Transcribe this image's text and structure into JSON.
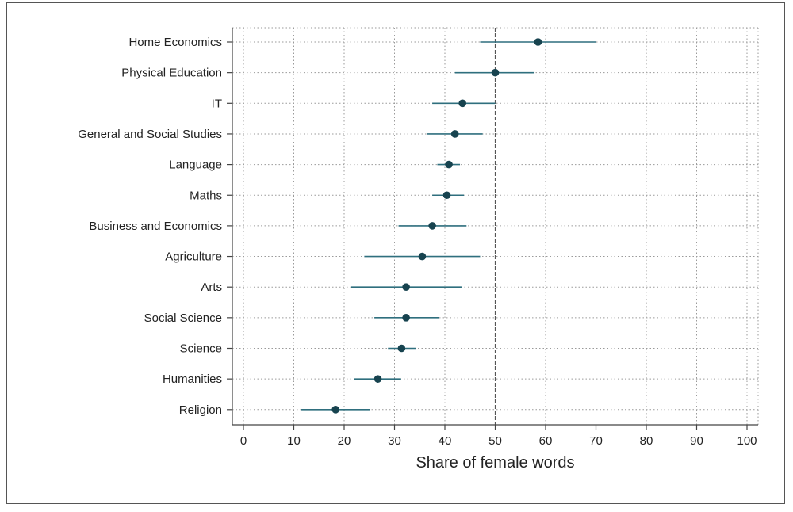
{
  "chart_data": {
    "type": "scatter",
    "title": "",
    "xlabel": "Share of female words",
    "ylabel": "",
    "xlim": [
      0,
      100
    ],
    "xticks": [
      "0",
      "10",
      "20",
      "30",
      "40",
      "50",
      "60",
      "70",
      "80",
      "90",
      "100"
    ],
    "reference_line": 50,
    "grid": true,
    "colors": {
      "marker": "#17434f",
      "ci": "#2f6f7e",
      "grid": "#9a9a9a",
      "reference": "#555555"
    },
    "categories": [
      "Home Economics",
      "Physical Education",
      "IT",
      "General and Social Studies",
      "Language",
      "Maths",
      "Business and Economics",
      "Agriculture",
      "Arts",
      "Social Science",
      "Science",
      "Humanities",
      "Religion"
    ],
    "values": [
      58.5,
      50.0,
      43.5,
      42.0,
      40.8,
      40.4,
      37.5,
      35.5,
      32.3,
      32.3,
      31.4,
      26.7,
      18.3
    ],
    "ci_low": [
      47.0,
      42.0,
      37.5,
      36.5,
      38.5,
      37.5,
      30.8,
      24.0,
      21.3,
      26.0,
      28.7,
      22.0,
      11.5
    ],
    "ci_high": [
      70.0,
      57.8,
      50.0,
      47.5,
      43.0,
      43.8,
      44.3,
      47.0,
      43.3,
      38.8,
      34.3,
      31.3,
      25.2
    ]
  }
}
